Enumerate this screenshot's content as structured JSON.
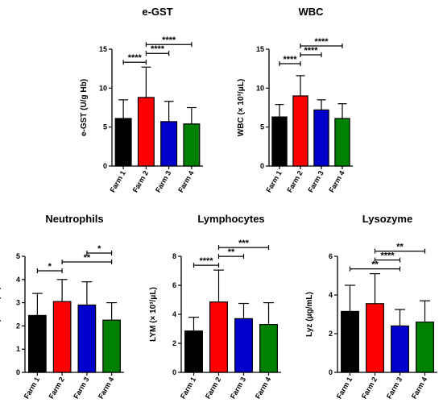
{
  "chart_data": [
    {
      "type": "bar",
      "title": "e-GST",
      "ylabel": "e-GST  (U/g Hb)",
      "categories": [
        "Farm 1",
        "Farm 2",
        "Farm 3",
        "Farm 4"
      ],
      "values": [
        6.1,
        8.8,
        5.7,
        5.4
      ],
      "errors": [
        2.4,
        3.9,
        2.6,
        2.1
      ],
      "colors": [
        "#000000",
        "#ff0000",
        "#0000cc",
        "#008000"
      ],
      "ylim": [
        0,
        15
      ],
      "yticks": [
        0,
        5,
        10,
        15
      ],
      "comparisons": [
        {
          "from": 0,
          "to": 1,
          "label": "****"
        },
        {
          "from": 1,
          "to": 2,
          "label": "****"
        },
        {
          "from": 1,
          "to": 3,
          "label": "****"
        }
      ]
    },
    {
      "type": "bar",
      "title": "WBC",
      "ylabel": "WBC (× 10³/μL)",
      "categories": [
        "Farm 1",
        "Farm 2",
        "Farm 3",
        "Farm 4"
      ],
      "values": [
        6.3,
        9.0,
        7.2,
        6.1
      ],
      "errors": [
        1.6,
        2.6,
        1.3,
        1.9
      ],
      "colors": [
        "#000000",
        "#ff0000",
        "#0000cc",
        "#008000"
      ],
      "ylim": [
        0,
        15
      ],
      "yticks": [
        0,
        5,
        10,
        15
      ],
      "comparisons": [
        {
          "from": 0,
          "to": 1,
          "label": "****"
        },
        {
          "from": 1,
          "to": 2,
          "label": "****"
        },
        {
          "from": 1,
          "to": 3,
          "label": "****"
        }
      ]
    },
    {
      "type": "bar",
      "title": "Neutrophils",
      "ylabel": "NEU (× 10³/μL)",
      "categories": [
        "Farm 1",
        "Farm 2",
        "Farm 3",
        "Farm 4"
      ],
      "values": [
        2.45,
        3.05,
        2.9,
        2.25
      ],
      "errors": [
        0.95,
        0.95,
        1.0,
        0.75
      ],
      "colors": [
        "#000000",
        "#ff0000",
        "#0000cc",
        "#008000"
      ],
      "ylim": [
        0,
        5
      ],
      "yticks": [
        0,
        1,
        2,
        3,
        4,
        5
      ],
      "comparisons": [
        {
          "from": 0,
          "to": 1,
          "label": "*"
        },
        {
          "from": 1,
          "to": 3,
          "label": "**"
        },
        {
          "from": 2,
          "to": 3,
          "label": "*"
        }
      ]
    },
    {
      "type": "bar",
      "title": "Lymphocytes",
      "ylabel": "LYM (× 10³/μL)",
      "categories": [
        "Farm 1",
        "Farm 2",
        "Farm 3",
        "Farm 4"
      ],
      "values": [
        2.85,
        4.85,
        3.7,
        3.3
      ],
      "errors": [
        0.95,
        2.2,
        1.05,
        1.5
      ],
      "colors": [
        "#000000",
        "#ff0000",
        "#0000cc",
        "#008000"
      ],
      "ylim": [
        0,
        8
      ],
      "yticks": [
        0,
        2,
        4,
        6,
        8
      ],
      "comparisons": [
        {
          "from": 0,
          "to": 1,
          "label": "****"
        },
        {
          "from": 1,
          "to": 2,
          "label": "**"
        },
        {
          "from": 1,
          "to": 3,
          "label": "***"
        }
      ]
    },
    {
      "type": "bar",
      "title": "Lysozyme",
      "ylabel": "Lyz (μg/mL)",
      "categories": [
        "Farm 1",
        "Farm 2",
        "Farm 3",
        "Farm 4"
      ],
      "values": [
        3.15,
        3.55,
        2.4,
        2.6
      ],
      "errors": [
        1.35,
        1.55,
        0.85,
        1.1
      ],
      "colors": [
        "#000000",
        "#ff0000",
        "#0000cc",
        "#008000"
      ],
      "ylim": [
        0,
        6
      ],
      "yticks": [
        0,
        2,
        4,
        6
      ],
      "comparisons": [
        {
          "from": 0,
          "to": 2,
          "label": "**"
        },
        {
          "from": 1,
          "to": 2,
          "label": "****"
        },
        {
          "from": 1,
          "to": 3,
          "label": "**"
        }
      ]
    }
  ]
}
